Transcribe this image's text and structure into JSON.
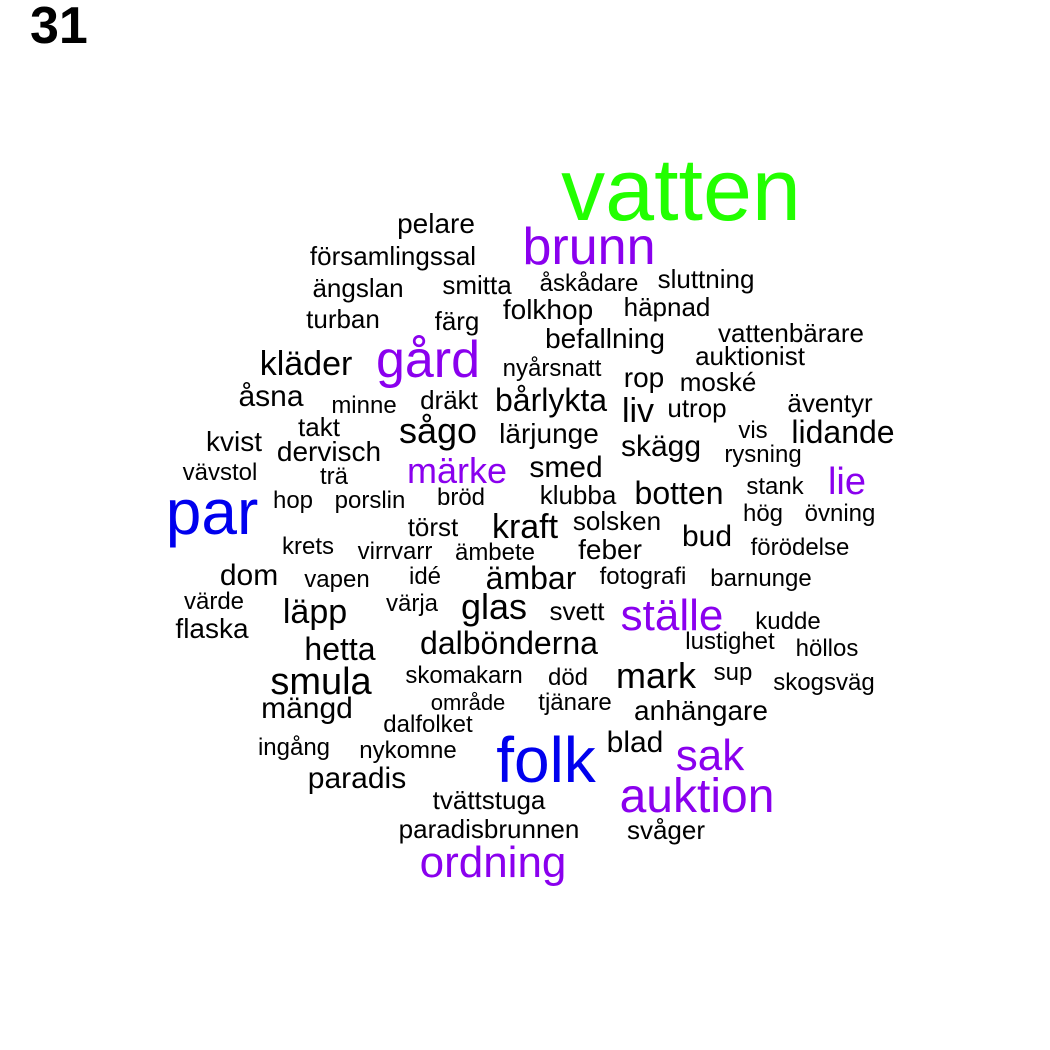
{
  "figure_label": "31",
  "colors": {
    "green": "#22ff00",
    "blue": "#0000ee",
    "purple": "#8a00ee",
    "black": "#000000"
  },
  "words": [
    {
      "text": "vatten",
      "color": "green",
      "weight": 5
    },
    {
      "text": "par",
      "color": "blue",
      "weight": 4
    },
    {
      "text": "folk",
      "color": "blue",
      "weight": 4
    },
    {
      "text": "brunn",
      "color": "purple",
      "weight": 3
    },
    {
      "text": "gård",
      "color": "purple",
      "weight": 3
    },
    {
      "text": "auktion",
      "color": "purple",
      "weight": 3
    },
    {
      "text": "sak",
      "color": "purple",
      "weight": 3
    },
    {
      "text": "ställe",
      "color": "purple",
      "weight": 3
    },
    {
      "text": "ordning",
      "color": "purple",
      "weight": 3
    },
    {
      "text": "märke",
      "color": "purple",
      "weight": 2
    },
    {
      "text": "lie",
      "color": "purple",
      "weight": 2
    },
    {
      "text": "pelare",
      "color": "black",
      "weight": 1
    },
    {
      "text": "församlingssal",
      "color": "black",
      "weight": 1
    },
    {
      "text": "ängslan",
      "color": "black",
      "weight": 1
    },
    {
      "text": "smitta",
      "color": "black",
      "weight": 1
    },
    {
      "text": "åskådare",
      "color": "black",
      "weight": 1
    },
    {
      "text": "sluttning",
      "color": "black",
      "weight": 1
    },
    {
      "text": "turban",
      "color": "black",
      "weight": 1
    },
    {
      "text": "färg",
      "color": "black",
      "weight": 1
    },
    {
      "text": "folkhop",
      "color": "black",
      "weight": 1
    },
    {
      "text": "häpnad",
      "color": "black",
      "weight": 1
    },
    {
      "text": "befallning",
      "color": "black",
      "weight": 1
    },
    {
      "text": "vattenbärare",
      "color": "black",
      "weight": 1
    },
    {
      "text": "kläder",
      "color": "black",
      "weight": 2
    },
    {
      "text": "nyårsnatt",
      "color": "black",
      "weight": 1
    },
    {
      "text": "auktionist",
      "color": "black",
      "weight": 1
    },
    {
      "text": "rop",
      "color": "black",
      "weight": 1
    },
    {
      "text": "moské",
      "color": "black",
      "weight": 1
    },
    {
      "text": "åsna",
      "color": "black",
      "weight": 1
    },
    {
      "text": "minne",
      "color": "black",
      "weight": 1
    },
    {
      "text": "dräkt",
      "color": "black",
      "weight": 1
    },
    {
      "text": "bårlykta",
      "color": "black",
      "weight": 1
    },
    {
      "text": "liv",
      "color": "black",
      "weight": 2
    },
    {
      "text": "utrop",
      "color": "black",
      "weight": 1
    },
    {
      "text": "äventyr",
      "color": "black",
      "weight": 1
    },
    {
      "text": "takt",
      "color": "black",
      "weight": 1
    },
    {
      "text": "sågo",
      "color": "black",
      "weight": 2
    },
    {
      "text": "lärjunge",
      "color": "black",
      "weight": 1
    },
    {
      "text": "vis",
      "color": "black",
      "weight": 1
    },
    {
      "text": "lidande",
      "color": "black",
      "weight": 1
    },
    {
      "text": "kvist",
      "color": "black",
      "weight": 1
    },
    {
      "text": "dervisch",
      "color": "black",
      "weight": 1
    },
    {
      "text": "skägg",
      "color": "black",
      "weight": 1
    },
    {
      "text": "rysning",
      "color": "black",
      "weight": 1
    },
    {
      "text": "vävstol",
      "color": "black",
      "weight": 1
    },
    {
      "text": "trä",
      "color": "black",
      "weight": 1
    },
    {
      "text": "smed",
      "color": "black",
      "weight": 1
    },
    {
      "text": "hop",
      "color": "black",
      "weight": 1
    },
    {
      "text": "porslin",
      "color": "black",
      "weight": 1
    },
    {
      "text": "bröd",
      "color": "black",
      "weight": 1
    },
    {
      "text": "klubba",
      "color": "black",
      "weight": 1
    },
    {
      "text": "botten",
      "color": "black",
      "weight": 2
    },
    {
      "text": "stank",
      "color": "black",
      "weight": 1
    },
    {
      "text": "hög",
      "color": "black",
      "weight": 1
    },
    {
      "text": "övning",
      "color": "black",
      "weight": 1
    },
    {
      "text": "törst",
      "color": "black",
      "weight": 1
    },
    {
      "text": "kraft",
      "color": "black",
      "weight": 2
    },
    {
      "text": "solsken",
      "color": "black",
      "weight": 1
    },
    {
      "text": "bud",
      "color": "black",
      "weight": 1
    },
    {
      "text": "krets",
      "color": "black",
      "weight": 1
    },
    {
      "text": "virrvarr",
      "color": "black",
      "weight": 1
    },
    {
      "text": "ämbete",
      "color": "black",
      "weight": 1
    },
    {
      "text": "feber",
      "color": "black",
      "weight": 1
    },
    {
      "text": "förödelse",
      "color": "black",
      "weight": 1
    },
    {
      "text": "dom",
      "color": "black",
      "weight": 1
    },
    {
      "text": "vapen",
      "color": "black",
      "weight": 1
    },
    {
      "text": "idé",
      "color": "black",
      "weight": 1
    },
    {
      "text": "ämbar",
      "color": "black",
      "weight": 2
    },
    {
      "text": "fotografi",
      "color": "black",
      "weight": 1
    },
    {
      "text": "barnunge",
      "color": "black",
      "weight": 1
    },
    {
      "text": "värde",
      "color": "black",
      "weight": 1
    },
    {
      "text": "läpp",
      "color": "black",
      "weight": 2
    },
    {
      "text": "värja",
      "color": "black",
      "weight": 1
    },
    {
      "text": "glas",
      "color": "black",
      "weight": 2
    },
    {
      "text": "svett",
      "color": "black",
      "weight": 1
    },
    {
      "text": "kudde",
      "color": "black",
      "weight": 1
    },
    {
      "text": "flaska",
      "color": "black",
      "weight": 1
    },
    {
      "text": "hetta",
      "color": "black",
      "weight": 2
    },
    {
      "text": "dalbönderna",
      "color": "black",
      "weight": 2
    },
    {
      "text": "lustighet",
      "color": "black",
      "weight": 1
    },
    {
      "text": "höllos",
      "color": "black",
      "weight": 1
    },
    {
      "text": "smula",
      "color": "black",
      "weight": 2
    },
    {
      "text": "skomakarn",
      "color": "black",
      "weight": 1
    },
    {
      "text": "död",
      "color": "black",
      "weight": 1
    },
    {
      "text": "mark",
      "color": "black",
      "weight": 2
    },
    {
      "text": "sup",
      "color": "black",
      "weight": 1
    },
    {
      "text": "skogsväg",
      "color": "black",
      "weight": 1
    },
    {
      "text": "mängd",
      "color": "black",
      "weight": 1
    },
    {
      "text": "område",
      "color": "black",
      "weight": 1
    },
    {
      "text": "tjänare",
      "color": "black",
      "weight": 1
    },
    {
      "text": "anhängare",
      "color": "black",
      "weight": 1
    },
    {
      "text": "dalfolket",
      "color": "black",
      "weight": 1
    },
    {
      "text": "ingång",
      "color": "black",
      "weight": 1
    },
    {
      "text": "nykomne",
      "color": "black",
      "weight": 1
    },
    {
      "text": "blad",
      "color": "black",
      "weight": 1
    },
    {
      "text": "paradis",
      "color": "black",
      "weight": 1
    },
    {
      "text": "tvättstuga",
      "color": "black",
      "weight": 1
    },
    {
      "text": "paradisbrunnen",
      "color": "black",
      "weight": 1
    },
    {
      "text": "svåger",
      "color": "black",
      "weight": 1
    }
  ]
}
